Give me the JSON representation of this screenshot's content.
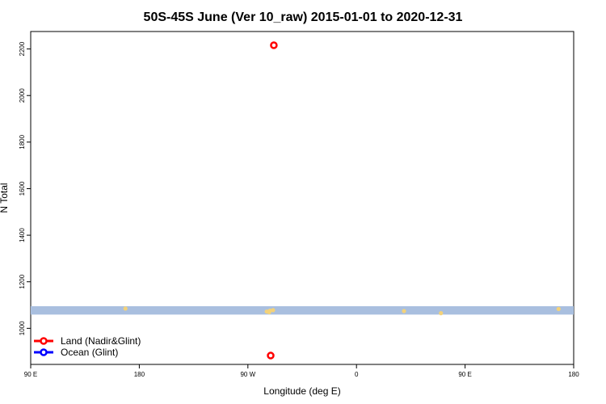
{
  "chart_data": {
    "type": "scatter",
    "title": "50S-45S June (Ver 10_raw)   2015-01-01 to 2020-12-31",
    "xlabel": "Longitude (deg E)",
    "ylabel": "N Total",
    "xlim": [
      90,
      450
    ],
    "ylim": [
      845,
      2275
    ],
    "x_ticks": [
      {
        "value": 90,
        "label": "90 E"
      },
      {
        "value": 162,
        "label": "180"
      },
      {
        "value": 234,
        "label": "90 W"
      },
      {
        "value": 306,
        "label": "0"
      },
      {
        "value": 378,
        "label": "90 E"
      },
      {
        "value": 450,
        "label": "180"
      }
    ],
    "y_ticks": [
      1000,
      1200,
      1400,
      1600,
      1800,
      2000,
      2200
    ],
    "grid": false,
    "legend_position": "bottom-left",
    "legend": [
      {
        "name": "Land (Nadir&Glint)",
        "color": "#ff0000"
      },
      {
        "name": "Ocean (Glint)",
        "color": "#0000ff"
      }
    ],
    "band": {
      "y_low": 1059,
      "y_high": 1095,
      "color": "#a9bfdf"
    },
    "series": [
      {
        "name": "Land (Nadir&Glint)",
        "color": "#ff0000",
        "points": [
          {
            "x": 251.2,
            "y": 2216
          },
          {
            "x": 249.1,
            "y": 883
          }
        ]
      }
    ],
    "band_points": {
      "color": "#f3d27a",
      "points": [
        {
          "x": 152.8,
          "y": 1085
        },
        {
          "x": 248.6,
          "y": 1076
        },
        {
          "x": 246.5,
          "y": 1072
        },
        {
          "x": 250.7,
          "y": 1078
        },
        {
          "x": 248.1,
          "y": 1069
        },
        {
          "x": 337.5,
          "y": 1074
        },
        {
          "x": 362.0,
          "y": 1065
        },
        {
          "x": 440.0,
          "y": 1083
        }
      ]
    }
  }
}
